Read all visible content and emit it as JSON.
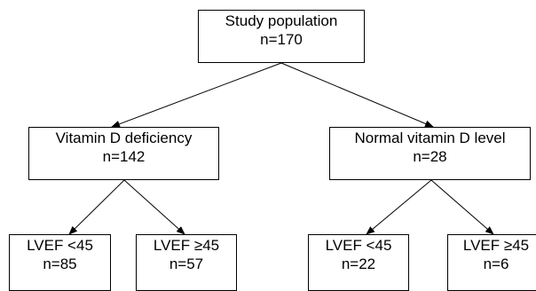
{
  "root": {
    "label": "Study population",
    "n": "n=170"
  },
  "vitamin_d_deficiency": {
    "label": "Vitamin D deficiency",
    "n": "n=142",
    "lvef_low": {
      "label": "LVEF <45",
      "n": "n=85"
    },
    "lvef_high": {
      "label": "LVEF ≥45",
      "n": "n=57"
    }
  },
  "normal_vitamin_d": {
    "label": "Normal vitamin D level",
    "n": "n=28",
    "lvef_low": {
      "label": "LVEF <45",
      "n": "n=22"
    },
    "lvef_high": {
      "label": "LVEF ≥45",
      "n": "n=6"
    }
  }
}
